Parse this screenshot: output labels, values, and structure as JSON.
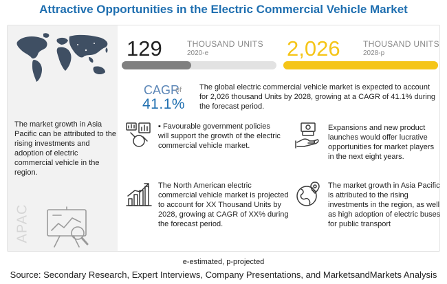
{
  "title": "Attractive Opportunities in the Electric Commercial Vehicle Market",
  "left_panel": {
    "text": "The market growth in Asia Pacific can be attributed to the rising investments and adoption of electric commercial vehicle in the region.",
    "region_label": "APAC",
    "map_icon": "world-map",
    "board_icon": "analytics-board-magnifier-icon"
  },
  "stats": {
    "start": {
      "value": "129",
      "unit": "THOUSAND UNITS",
      "year": "2020-e",
      "bar_fraction": 0.45,
      "bar_color": "#808080"
    },
    "end": {
      "value": "2,026",
      "unit": "THOUSAND UNITS",
      "year": "2028-p",
      "bar_fraction": 1.0,
      "bar_color": "#f5c518"
    },
    "value_color": "#f5c518"
  },
  "cagr": {
    "label": "CAGR",
    "of": "of",
    "value": "41.1%",
    "description": "The global electric commercial vehicle market is expected to account for 2,026 thousand Units by 2028, growing at a CAGR of 41.1% during the forecast period."
  },
  "blurbs": [
    {
      "icon": "gavel-chart-icon",
      "text": "▪ Favourable government policies will support the growth of the electric commercial vehicle market."
    },
    {
      "icon": "money-hand-icon",
      "text": "Expansions and new product launches would offer lucrative opportunities for market players in the next eight years."
    },
    {
      "icon": "growth-chart-icon",
      "text": "The North American electric commercial vehicle market is projected to account for XX Thousand Units by 2028, growing at CAGR of XX% during the forecast period."
    },
    {
      "icon": "globe-pin-icon",
      "text": "The market growth in Asia Pacific is attributed to the rising investments in the region, as well as high adoption of electric buses for public transport"
    }
  ],
  "footnote": "e-estimated, p-projected",
  "source": "Source: Secondary Research, Expert Interviews, Company Presentations, and MarketsandMarkets Analysis"
}
